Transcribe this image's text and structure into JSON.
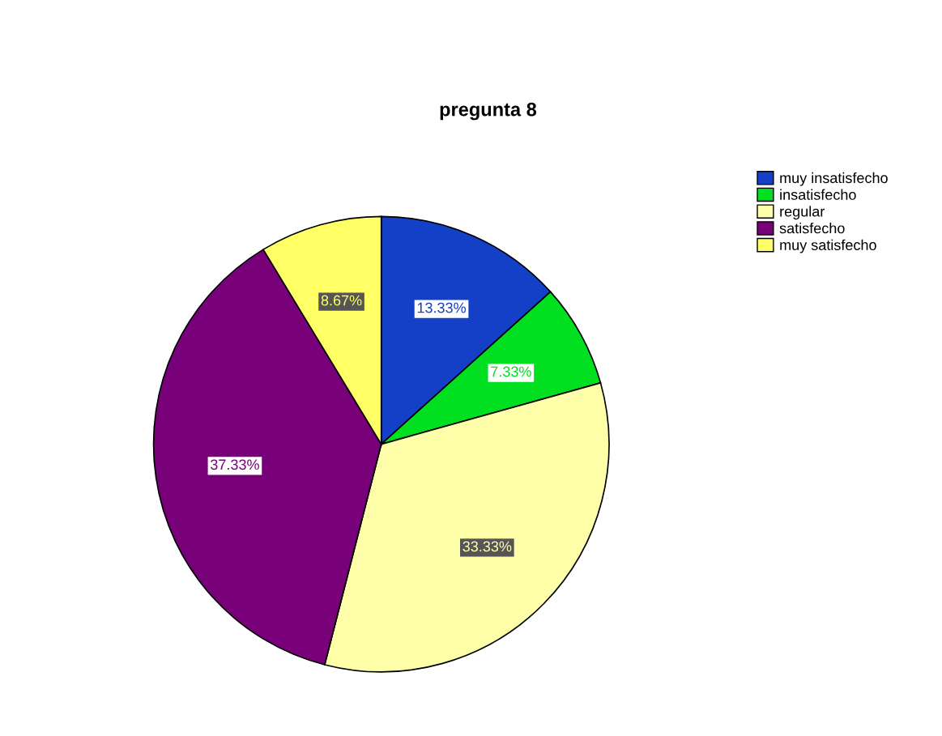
{
  "chart_data": {
    "type": "pie",
    "title": "pregunta 8",
    "categories": [
      "muy insatisfecho",
      "insatisfecho",
      "regular",
      "satisfecho",
      "muy satisfecho"
    ],
    "values": [
      13.33,
      7.33,
      33.33,
      37.33,
      8.67
    ],
    "colors": [
      "#1440c8",
      "#00e020",
      "#ffffaa",
      "#780078",
      "#ffff66"
    ],
    "value_labels": [
      "13.33%",
      "7.33%",
      "33.33%",
      "37.33%",
      "8.67%"
    ],
    "legend": "top right"
  }
}
